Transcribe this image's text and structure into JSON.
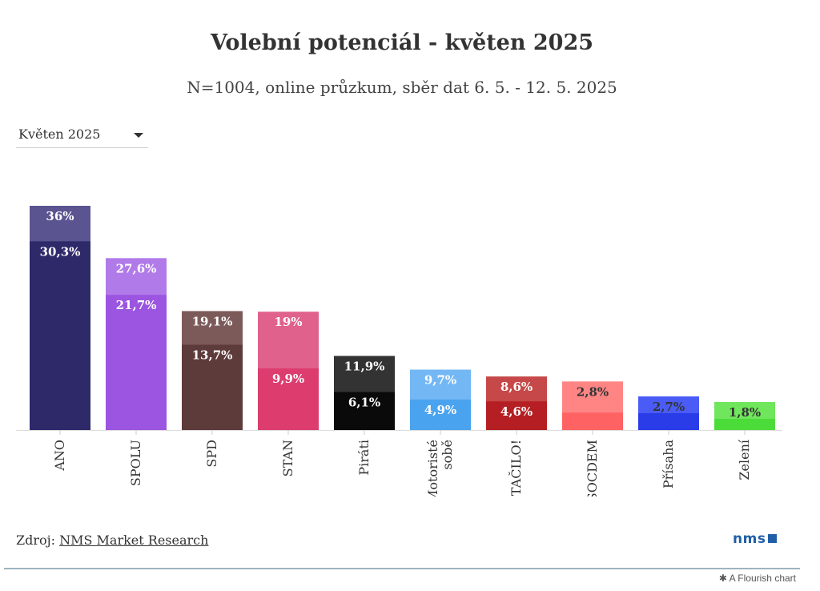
{
  "header": {
    "title": "Volební potenciál - květen 2025",
    "subtitle": "N=1004, online průzkum, sběr dat 6. 5. - 12. 5. 2025"
  },
  "selector": {
    "value": "Květen 2025"
  },
  "footer": {
    "source_prefix": "Zdroj:",
    "source_link": "NMS Market Research",
    "logo": "nms",
    "credit": "A Flourish chart"
  },
  "chart_data": {
    "type": "bar",
    "title": "Volební potenciál - květen 2025",
    "categories": [
      "ANO",
      "SPOLU",
      "SPD",
      "STAN",
      "Piráti",
      "Motoristé sobě",
      "STAČILO!",
      "SOCDEM",
      "Přísaha",
      "Zelení"
    ],
    "series": [
      {
        "name": "Potenciál",
        "values": [
          36,
          27.6,
          19.1,
          19,
          11.9,
          9.7,
          8.6,
          7.8,
          5.4,
          4.5
        ],
        "labels": [
          "36%",
          "27,6%",
          "19,1%",
          "19%",
          "11,9%",
          "9,7%",
          "8,6%",
          null,
          null,
          null
        ],
        "colors": [
          "#5a5490",
          "#b07ae8",
          "#7d5a5a",
          "#e0618b",
          "#333333",
          "#74b7f5",
          "#c64848",
          "#ff8585",
          "#4a5cf5",
          "#70e65c"
        ]
      },
      {
        "name": "Jádro",
        "values": [
          30.3,
          21.7,
          13.7,
          9.9,
          6.1,
          4.9,
          4.6,
          2.8,
          2.7,
          1.8
        ],
        "labels": [
          "30,3%",
          "21,7%",
          "13,7%",
          "9,9%",
          "6,1%",
          "4,9%",
          "4,6%",
          "2,8%",
          "2,7%",
          "1,8%"
        ],
        "colors": [
          "#2e2a6a",
          "#9b55e0",
          "#5e3b3b",
          "#dc3d6e",
          "#0a0a0a",
          "#4aa3ee",
          "#b51f23",
          "#ff6262",
          "#2a3be8",
          "#4cdc3a"
        ]
      }
    ],
    "ylim": [
      0,
      36
    ],
    "grid": false,
    "xlabel": "",
    "ylabel": ""
  }
}
